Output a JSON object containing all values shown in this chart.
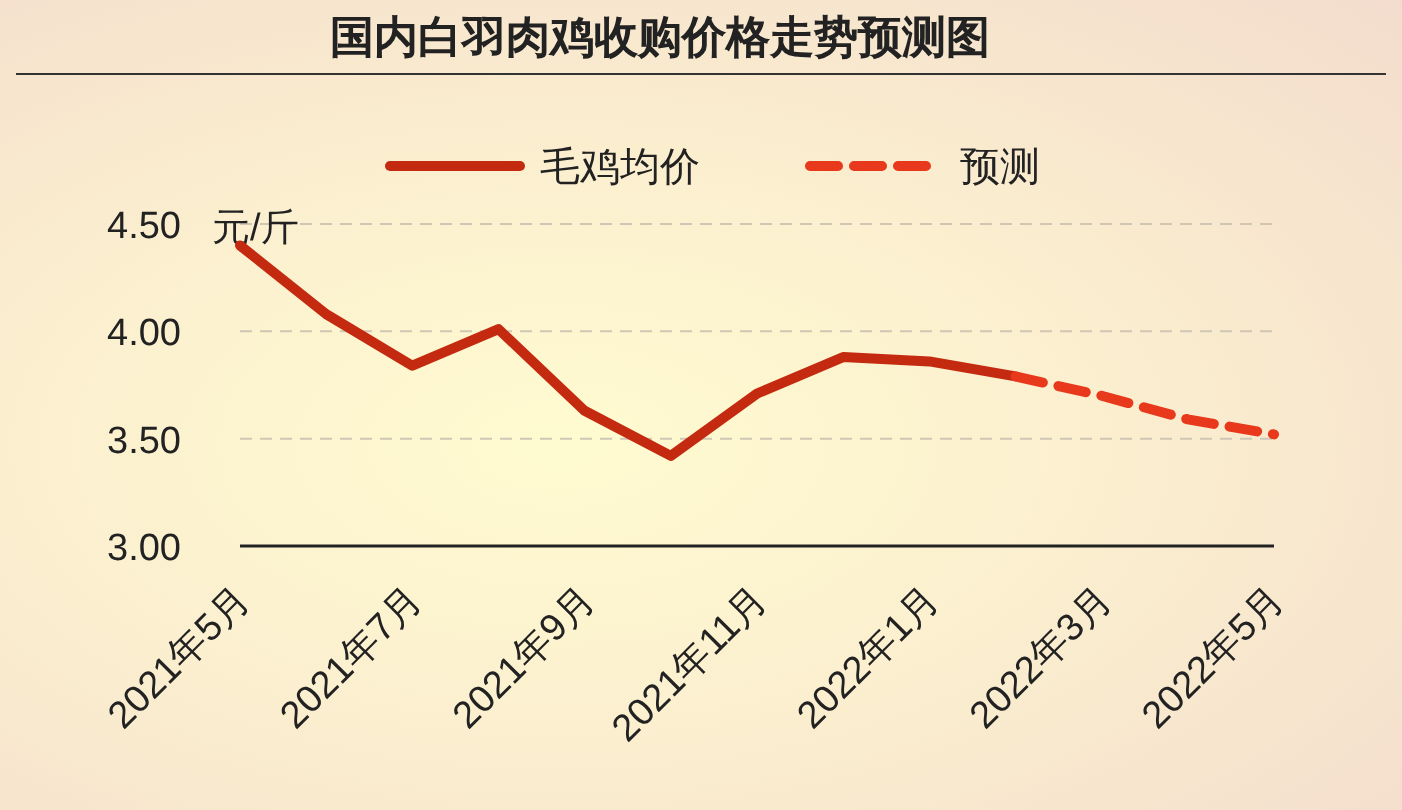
{
  "chart_data": {
    "type": "line",
    "title": "国内白羽肉鸡收购价格走势预测图",
    "ylabel": "元/斤",
    "categories": [
      "2021年5月",
      null,
      "2021年7月",
      null,
      "2021年9月",
      null,
      "2021年11月",
      null,
      "2022年1月",
      null,
      "2022年3月",
      null,
      "2022年5月"
    ],
    "series": [
      {
        "name": "毛鸡均价",
        "color": "#c42a10",
        "line_style": "solid",
        "values": [
          4.4,
          4.08,
          3.84,
          4.01,
          3.63,
          3.42,
          3.71,
          3.88,
          3.86,
          3.79,
          null,
          null,
          null
        ]
      },
      {
        "name": "预测",
        "color": "#e8391c",
        "line_style": "dashed",
        "values": [
          null,
          null,
          null,
          null,
          null,
          null,
          null,
          null,
          null,
          3.79,
          3.7,
          3.59,
          3.52
        ]
      }
    ],
    "ylim": [
      3,
      4.5
    ],
    "yticks": [
      {
        "value": 3,
        "label": "3.00"
      },
      {
        "value": 3.5,
        "label": "3.50"
      },
      {
        "value": 4,
        "label": "4.00"
      },
      {
        "value": 4.5,
        "label": "4.50"
      }
    ],
    "grid": "y",
    "legend": "top",
    "marker": "none"
  }
}
